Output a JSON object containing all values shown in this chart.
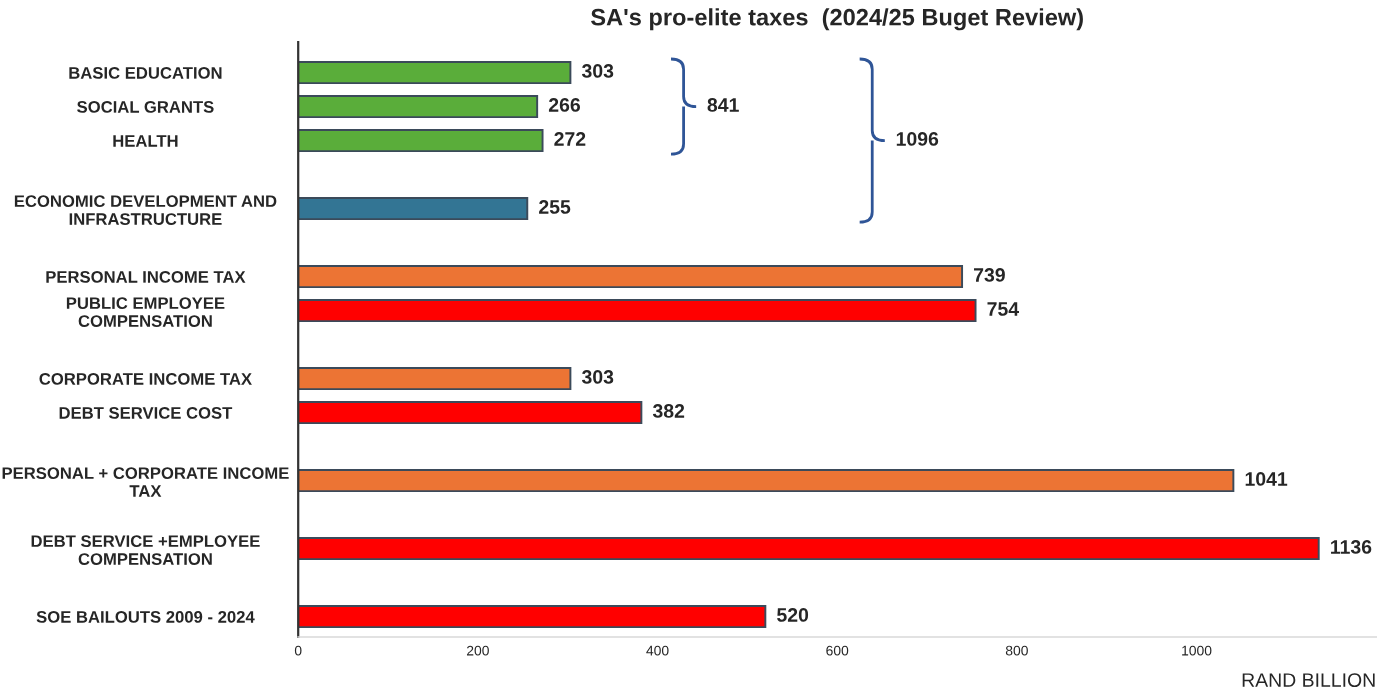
{
  "chart_data": {
    "type": "bar",
    "orientation": "horizontal",
    "title": "SA's pro-elite taxes  (2024/25 Buget Review)",
    "xlabel": "RAND BILLION",
    "categories": [
      "BASIC EDUCATION",
      "SOCIAL GRANTS",
      "HEALTH",
      null,
      "ECONOMIC DEVELOPMENT AND INFRASTRUCTURE",
      null,
      "PERSONAL INCOME TAX",
      "PUBLIC EMPLOYEE COMPENSATION",
      null,
      "CORPORATE INCOME TAX",
      "DEBT SERVICE COST",
      null,
      "PERSONAL + CORPORATE INCOME TAX",
      null,
      "DEBT SERVICE +EMPLOYEE COMPENSATION",
      null,
      "SOE BAILOUTS 2009 - 2024"
    ],
    "values": [
      303,
      266,
      272,
      null,
      255,
      null,
      739,
      754,
      null,
      303,
      382,
      null,
      1041,
      null,
      1136,
      null,
      520
    ],
    "colors": [
      "#5aad3a",
      "#5aad3a",
      "#5aad3a",
      null,
      "#337594",
      null,
      "#ec7434",
      "#ff0000",
      null,
      "#ec7434",
      "#ff0000",
      null,
      "#ec7434",
      null,
      "#ff0000",
      null,
      "#ff0000"
    ],
    "xlim": [
      0,
      1200
    ],
    "xticks": [
      0,
      200,
      400,
      600,
      800,
      1000
    ],
    "grid": false,
    "data_labels": true,
    "annotations": [
      "841",
      "1096"
    ]
  }
}
